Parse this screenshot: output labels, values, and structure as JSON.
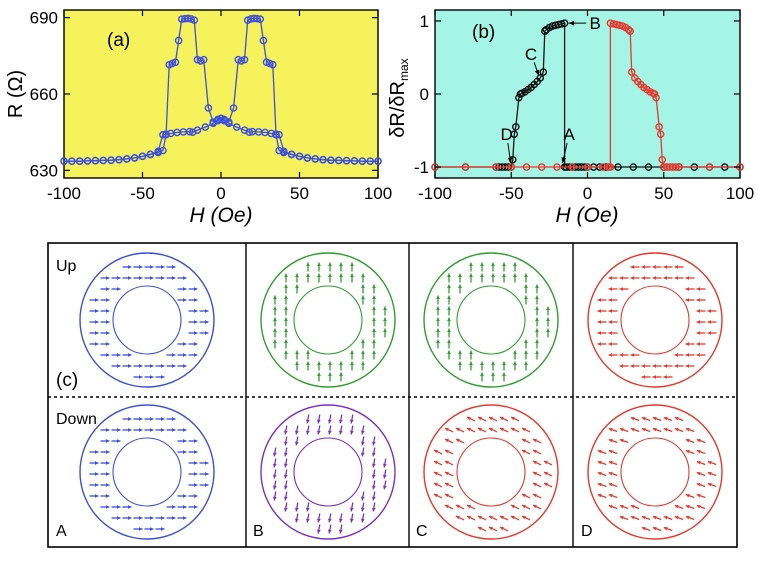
{
  "colors": {
    "panel_a_bg": "#f6f25b",
    "panel_b_bg": "#a4f5e6",
    "blue": "#3b4fe0",
    "black": "#111111",
    "red": "#e8382c",
    "green": "#2ea02e",
    "purple": "#7b2fc4"
  },
  "chart_data": [
    {
      "type": "scatter",
      "panel_label": "(a)",
      "xlabel": "H (Oe)",
      "ylabel": "R (Ω)",
      "xlim": [
        -100,
        100
      ],
      "ylim": [
        627,
        693
      ],
      "x_ticks": [
        -100,
        -50,
        0,
        50,
        100
      ],
      "x_tick_labels": [
        "-100",
        "-50",
        "0",
        "50",
        "100"
      ],
      "y_ticks": [
        630,
        660,
        690
      ],
      "y_tick_labels": [
        "630",
        "660",
        "690"
      ],
      "series": [
        {
          "name": "sweep_down",
          "color": "#3b4fe0",
          "points": [
            [
              100,
              633.6
            ],
            [
              95,
              633.6
            ],
            [
              90,
              633.6
            ],
            [
              85,
              633.7
            ],
            [
              80,
              633.8
            ],
            [
              75,
              633.9
            ],
            [
              70,
              634.0
            ],
            [
              65,
              634.2
            ],
            [
              60,
              634.5
            ],
            [
              55,
              634.9
            ],
            [
              50,
              635.5
            ],
            [
              45,
              636.2
            ],
            [
              40,
              637.0
            ],
            [
              37,
              637.8
            ],
            [
              35,
              644.0
            ],
            [
              32,
              644.5
            ],
            [
              28,
              644.9
            ],
            [
              24,
              645.1
            ],
            [
              20,
              645.2
            ],
            [
              18,
              645.0
            ],
            [
              15,
              645.8
            ],
            [
              10,
              647.0
            ],
            [
              5,
              648.5
            ],
            [
              2,
              649.5
            ],
            [
              0,
              650.4
            ],
            [
              -2,
              650.0
            ],
            [
              -5,
              649.0
            ],
            [
              -8,
              654.5
            ],
            [
              -11,
              673.5
            ],
            [
              -13,
              673.0
            ],
            [
              -15,
              673.5
            ],
            [
              -17,
              689.0
            ],
            [
              -19,
              689.5
            ],
            [
              -21,
              689.7
            ],
            [
              -23,
              689.6
            ],
            [
              -25,
              689.4
            ],
            [
              -27,
              681.0
            ],
            [
              -29,
              672.5
            ],
            [
              -31,
              672.0
            ],
            [
              -33,
              671.5
            ],
            [
              -35,
              644.2
            ],
            [
              -37,
              644.0
            ],
            [
              -40,
              637.5
            ],
            [
              -45,
              636.3
            ],
            [
              -50,
              635.5
            ],
            [
              -55,
              634.9
            ],
            [
              -60,
              634.5
            ],
            [
              -65,
              634.2
            ],
            [
              -70,
              634.0
            ],
            [
              -75,
              633.9
            ],
            [
              -80,
              633.8
            ],
            [
              -85,
              633.7
            ],
            [
              -90,
              633.6
            ],
            [
              -95,
              633.6
            ],
            [
              -100,
              633.6
            ]
          ]
        },
        {
          "name": "sweep_up",
          "color": "#3b4fe0",
          "points": [
            [
              -100,
              633.6
            ],
            [
              -95,
              633.6
            ],
            [
              -90,
              633.6
            ],
            [
              -85,
              633.7
            ],
            [
              -80,
              633.8
            ],
            [
              -75,
              633.9
            ],
            [
              -70,
              634.0
            ],
            [
              -65,
              634.2
            ],
            [
              -60,
              634.5
            ],
            [
              -55,
              634.9
            ],
            [
              -50,
              635.5
            ],
            [
              -45,
              636.2
            ],
            [
              -40,
              637.0
            ],
            [
              -37,
              637.8
            ],
            [
              -35,
              644.0
            ],
            [
              -32,
              644.5
            ],
            [
              -28,
              644.9
            ],
            [
              -24,
              645.1
            ],
            [
              -20,
              645.2
            ],
            [
              -18,
              645.0
            ],
            [
              -15,
              645.8
            ],
            [
              -10,
              647.0
            ],
            [
              -5,
              648.5
            ],
            [
              -2,
              649.5
            ],
            [
              0,
              650.4
            ],
            [
              2,
              650.0
            ],
            [
              5,
              649.0
            ],
            [
              8,
              654.5
            ],
            [
              11,
              673.5
            ],
            [
              13,
              673.0
            ],
            [
              15,
              673.5
            ],
            [
              17,
              689.0
            ],
            [
              19,
              689.5
            ],
            [
              21,
              689.7
            ],
            [
              23,
              689.6
            ],
            [
              25,
              689.4
            ],
            [
              27,
              681.0
            ],
            [
              29,
              672.5
            ],
            [
              31,
              672.0
            ],
            [
              33,
              671.5
            ],
            [
              35,
              644.2
            ],
            [
              37,
              644.0
            ],
            [
              40,
              637.5
            ],
            [
              45,
              636.3
            ],
            [
              50,
              635.5
            ],
            [
              55,
              634.9
            ],
            [
              60,
              634.5
            ],
            [
              65,
              634.2
            ],
            [
              70,
              634.0
            ],
            [
              75,
              633.9
            ],
            [
              80,
              633.8
            ],
            [
              85,
              633.7
            ],
            [
              90,
              633.6
            ],
            [
              95,
              633.6
            ],
            [
              100,
              633.6
            ]
          ]
        }
      ]
    },
    {
      "type": "line",
      "panel_label": "(b)",
      "xlabel": "H (Oe)",
      "ylabel_main": "δR/δR",
      "ylabel_sub": "max",
      "xlim": [
        -100,
        100
      ],
      "ylim": [
        -1.15,
        1.15
      ],
      "x_ticks": [
        -100,
        -50,
        0,
        50,
        100
      ],
      "x_tick_labels": [
        "-100",
        "-50",
        "0",
        "50",
        "100"
      ],
      "y_ticks": [
        -1,
        0,
        1
      ],
      "y_tick_labels": [
        "-1",
        "0",
        "1"
      ],
      "annotations": [
        {
          "text": "B",
          "x": -15,
          "y": 0.97,
          "tx": 5,
          "ty": 0.97
        },
        {
          "text": "C",
          "x": -31,
          "y": 0.2,
          "tx": -37,
          "ty": 0.55
        },
        {
          "text": "D",
          "x": -50,
          "y": -1.0,
          "tx": -53,
          "ty": -0.55
        },
        {
          "text": "A",
          "x": -17,
          "y": -1.0,
          "tx": -12,
          "ty": -0.55
        }
      ],
      "series": [
        {
          "name": "sweep_down",
          "color": "#111111",
          "points": [
            [
              100,
              -1
            ],
            [
              90,
              -1
            ],
            [
              80,
              -1
            ],
            [
              70,
              -1
            ],
            [
              60,
              -1
            ],
            [
              50,
              -1
            ],
            [
              40,
              -1
            ],
            [
              30,
              -1
            ],
            [
              20,
              -1
            ],
            [
              12,
              -1
            ],
            [
              8,
              -1
            ],
            [
              4,
              -1
            ],
            [
              0,
              -1
            ],
            [
              -2,
              -1
            ],
            [
              -4,
              -1
            ],
            [
              -6,
              -1
            ],
            [
              -8,
              -1
            ],
            [
              -10,
              -1
            ],
            [
              -12,
              -1
            ],
            [
              -14,
              -1
            ],
            [
              -15,
              -1
            ],
            [
              -15,
              0.97
            ],
            [
              -17,
              0.96
            ],
            [
              -19,
              0.95
            ],
            [
              -21,
              0.94
            ],
            [
              -23,
              0.93
            ],
            [
              -25,
              0.91
            ],
            [
              -27,
              0.88
            ],
            [
              -28,
              0.86
            ],
            [
              -29,
              0.3
            ],
            [
              -31,
              0.22
            ],
            [
              -33,
              0.17
            ],
            [
              -35,
              0.13
            ],
            [
              -37,
              0.09
            ],
            [
              -39,
              0.06
            ],
            [
              -41,
              0.03
            ],
            [
              -43,
              0.01
            ],
            [
              -44,
              0.0
            ],
            [
              -45,
              -0.05
            ],
            [
              -47,
              -0.45
            ],
            [
              -48,
              -0.55
            ],
            [
              -49,
              -0.9
            ],
            [
              -50,
              -1
            ],
            [
              -52,
              -1
            ],
            [
              -54,
              -1
            ],
            [
              -56,
              -1
            ],
            [
              -58,
              -1
            ],
            [
              -60,
              -1
            ],
            [
              -80,
              -1
            ],
            [
              -100,
              -1
            ]
          ]
        },
        {
          "name": "sweep_up",
          "color": "#e8382c",
          "points": [
            [
              -100,
              -1
            ],
            [
              -80,
              -1
            ],
            [
              -60,
              -1
            ],
            [
              -50,
              -1
            ],
            [
              -40,
              -1
            ],
            [
              -30,
              -1
            ],
            [
              -20,
              -1
            ],
            [
              -10,
              -1
            ],
            [
              0,
              -1
            ],
            [
              10,
              -1
            ],
            [
              14,
              -1
            ],
            [
              15,
              -1
            ],
            [
              15,
              0.97
            ],
            [
              17,
              0.96
            ],
            [
              19,
              0.95
            ],
            [
              21,
              0.94
            ],
            [
              23,
              0.93
            ],
            [
              25,
              0.91
            ],
            [
              27,
              0.88
            ],
            [
              28,
              0.86
            ],
            [
              29,
              0.3
            ],
            [
              31,
              0.22
            ],
            [
              33,
              0.17
            ],
            [
              35,
              0.13
            ],
            [
              37,
              0.09
            ],
            [
              39,
              0.06
            ],
            [
              41,
              0.03
            ],
            [
              43,
              0.01
            ],
            [
              44,
              0.0
            ],
            [
              45,
              -0.05
            ],
            [
              47,
              -0.45
            ],
            [
              48,
              -0.55
            ],
            [
              49,
              -0.9
            ],
            [
              50,
              -1
            ],
            [
              52,
              -1
            ],
            [
              54,
              -1
            ],
            [
              56,
              -1
            ],
            [
              58,
              -1
            ],
            [
              60,
              -1
            ],
            [
              80,
              -1
            ],
            [
              100,
              -1
            ]
          ]
        }
      ]
    }
  ],
  "panel_c": {
    "label": "(c)",
    "row_labels": [
      "Up",
      "Down"
    ],
    "column_labels": [
      "A",
      "B",
      "C",
      "D"
    ],
    "cells": [
      {
        "row": "Up",
        "column": "A",
        "color": "#3b4fe0",
        "arrow_direction_deg": 0
      },
      {
        "row": "Up",
        "column": "B",
        "color": "#2ea02e",
        "arrow_direction_deg": -90
      },
      {
        "row": "Up",
        "column": "C",
        "color": "#2ea02e",
        "arrow_direction_deg": -90
      },
      {
        "row": "Up",
        "column": "D",
        "color": "#e8382c",
        "arrow_direction_deg": 180
      },
      {
        "row": "Down",
        "column": "A",
        "color": "#3b4fe0",
        "arrow_direction_deg": 0
      },
      {
        "row": "Down",
        "column": "B",
        "color": "#7b2fc4",
        "arrow_direction_deg": 100
      },
      {
        "row": "Down",
        "column": "C",
        "color": "#e8382c",
        "arrow_direction_deg": 205
      },
      {
        "row": "Down",
        "column": "D",
        "color": "#e8382c",
        "arrow_direction_deg": 200
      }
    ]
  }
}
